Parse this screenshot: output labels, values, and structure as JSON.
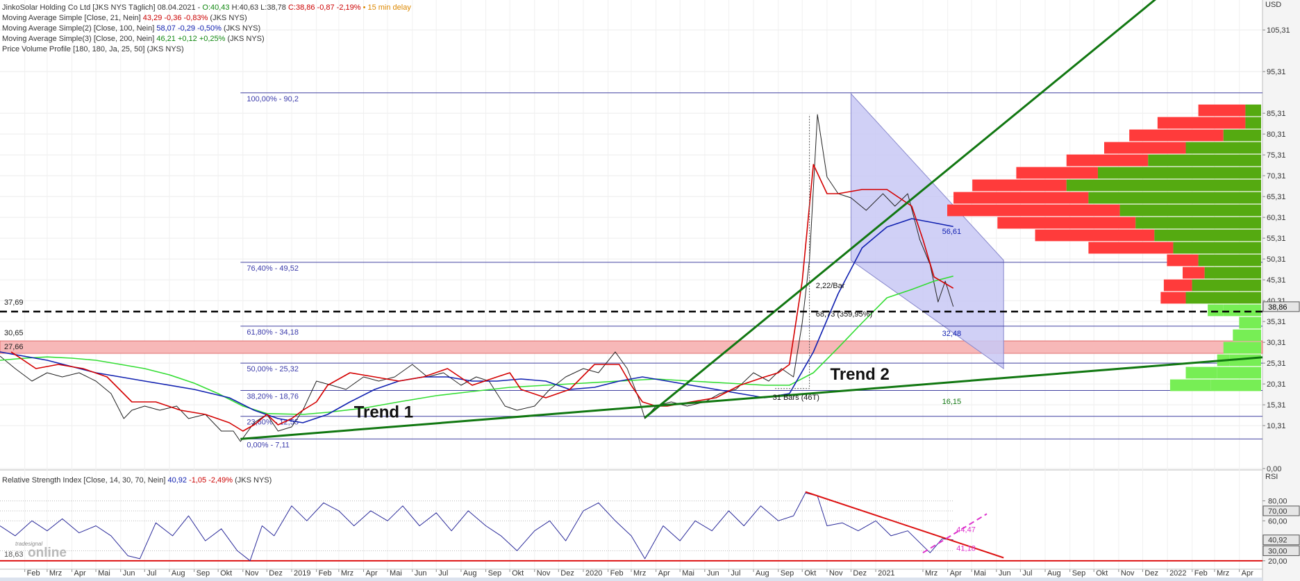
{
  "header": {
    "instrument": "JinkoSolar Holding Co Ltd [JKS NYS Täglich] 08.04.2021 - ",
    "ohlc_open": "O:40,43",
    "ohlc_hl": " H:40,63 L:38,78",
    "ohlc_close": " C:38,86 -0,87 -2,19%",
    "delay": " • 15 min delay",
    "indicators": [
      {
        "label": "Moving Average Simple [Close, 21, Nein] ",
        "value": "43,29 -0,36 -0,83%",
        "suffix": " (JKS NYS)"
      },
      {
        "label": "Moving Average Simple(2) [Close, 100, Nein] ",
        "value": "58,07 -0,29 -0,50%",
        "suffix": " (JKS NYS)"
      },
      {
        "label": "Moving Average Simple(3) [Close, 200, Nein] ",
        "value": "46,21 +0,12 +0,25%",
        "suffix": " (JKS NYS)"
      },
      {
        "label": "Price Volume Profile [180, 180, Ja, 25, 50] (JKS NYS)",
        "value": "",
        "suffix": ""
      }
    ]
  },
  "colors": {
    "ma21": "#d40000",
    "ma100": "#1020b0",
    "ma200": "#33dd33",
    "trend": "#117711",
    "fib": "#4040a0",
    "rsi": "#2a2a9a",
    "rsi_trend": "#dd1111",
    "rsi_pink": "#dd33cc",
    "support_band": "#f7b8b8",
    "channel": "#c8c8f4",
    "vp_red": "#ff3b3b",
    "vp_green": "#55aa11",
    "vp_lightgreen": "#77ee55"
  },
  "chart_data": [
    {
      "type": "line",
      "title": "JinkoSolar Holding Co Ltd [JKS NYS Täglich]",
      "y_axis_unit": "USD",
      "ylim": [
        0,
        110
      ],
      "y_ticks": [
        "105,31",
        "95,31",
        "85,31",
        "80,31",
        "75,31",
        "70,31",
        "65,31",
        "60,31",
        "55,31",
        "50,31",
        "45,31",
        "40,31",
        "35,31",
        "30,31",
        "25,31",
        "20,31",
        "15,31",
        "10,31",
        "0,00"
      ],
      "x_ticks": [
        "Feb",
        "Mrz",
        "Apr",
        "Mai",
        "Jun",
        "Jul",
        "Aug",
        "Sep",
        "Okt",
        "Nov",
        "Dez",
        "2019",
        "Feb",
        "Mrz",
        "Apr",
        "Mai",
        "Jun",
        "Jul",
        "Aug",
        "Sep",
        "Okt",
        "Nov",
        "Dez",
        "2020",
        "Feb",
        "Mrz",
        "Apr",
        "Mai",
        "Jun",
        "Jul",
        "Aug",
        "Sep",
        "Okt",
        "Nov",
        "Dez",
        "2021",
        "Mrz",
        "Apr",
        "Mai",
        "Jun",
        "Jul",
        "Aug",
        "Sep",
        "Okt",
        "Nov",
        "Dez",
        "2022",
        "Feb",
        "Mrz",
        "Apr"
      ],
      "fibonacci": [
        {
          "label": "100,00% - 90,2",
          "value": 90.2
        },
        {
          "label": "76,40% - 49,52",
          "value": 49.52
        },
        {
          "label": "61,80% - 34,18",
          "value": 34.18
        },
        {
          "label": "50,00% - 25,32",
          "value": 25.32
        },
        {
          "label": "38,20% - 18,76",
          "value": 18.76
        },
        {
          "label": "23,60% - 12,55",
          "value": 12.55
        },
        {
          "label": "0,00% - 7,11",
          "value": 7.11
        }
      ],
      "horizontal_levels": [
        {
          "label": "37,69",
          "value": 37.69,
          "style": "dashed"
        },
        {
          "label": "30,65",
          "value": 30.65
        },
        {
          "label": "27,66",
          "value": 27.66
        }
      ],
      "last_price": "38,86",
      "annotations": [
        {
          "text": "Trend 1",
          "kind": "trendline"
        },
        {
          "text": "Trend 2",
          "kind": "trendline"
        },
        {
          "text": "56,61",
          "kind": "channel-top"
        },
        {
          "text": "32,48",
          "kind": "channel-bottom"
        },
        {
          "text": "16,15",
          "kind": "trend-value"
        },
        {
          "text": "2,22/Bar",
          "kind": "measure"
        },
        {
          "text": "68,73 (359,95%)",
          "kind": "measure"
        },
        {
          "text": "31 Bars (46T)",
          "kind": "measure"
        }
      ],
      "series": [
        {
          "name": "Moving Average Simple [Close, 21, Nein]",
          "key": "ma21",
          "x": [
            "2018-01-15",
            "2018-02-15",
            "2018-03-15",
            "2018-04-15",
            "2018-05-15",
            "2018-06-15",
            "2018-07-15",
            "2018-08-15",
            "2018-09-15",
            "2018-10-15",
            "2018-11-01",
            "2018-11-15",
            "2018-12-01",
            "2018-12-15",
            "2019-01-01",
            "2019-01-15",
            "2019-02-01",
            "2019-02-15",
            "2019-03-15",
            "2019-04-15",
            "2019-05-15",
            "2019-06-15",
            "2019-07-15",
            "2019-08-15",
            "2019-09-15",
            "2019-10-01",
            "2019-10-15",
            "2019-11-15",
            "2019-12-15",
            "2020-01-15",
            "2020-02-15",
            "2020-03-01",
            "2020-03-15",
            "2020-04-01",
            "2020-04-15",
            "2020-05-15",
            "2020-06-15",
            "2020-07-15",
            "2020-08-15",
            "2020-09-01",
            "2020-09-15",
            "2020-10-01",
            "2020-10-15",
            "2020-11-01",
            "2020-11-15",
            "2020-12-15",
            "2021-01-15",
            "2021-02-15",
            "2021-03-01",
            "2021-03-15",
            "2021-04-08"
          ],
          "y": [
            28,
            24,
            25,
            24,
            22,
            16,
            16,
            14,
            13,
            11,
            9,
            10.5,
            13,
            10.5,
            12,
            14,
            16,
            20,
            23,
            22,
            21,
            22,
            24,
            20,
            22,
            23,
            19,
            17,
            19,
            25,
            25,
            20,
            16,
            15,
            15,
            16,
            17,
            20,
            22,
            23,
            25,
            45,
            73,
            66,
            66,
            67,
            67,
            63,
            55,
            46,
            43.3
          ]
        },
        {
          "name": "Moving Average Simple(2) [Close, 100, Nein]",
          "key": "ma100",
          "x": [
            "2018-01-01",
            "2018-03-01",
            "2018-05-01",
            "2018-07-01",
            "2018-09-01",
            "2018-10-15",
            "2018-11-15",
            "2018-12-15",
            "2019-01-15",
            "2019-02-15",
            "2019-03-15",
            "2019-04-15",
            "2019-05-15",
            "2019-06-15",
            "2019-07-15",
            "2019-08-15",
            "2019-09-15",
            "2019-10-15",
            "2019-11-15",
            "2019-12-15",
            "2020-01-15",
            "2020-02-15",
            "2020-03-15",
            "2020-04-15",
            "2020-05-15",
            "2020-06-15",
            "2020-07-15",
            "2020-08-15",
            "2020-09-15",
            "2020-10-15",
            "2020-11-15",
            "2020-12-15",
            "2021-01-15",
            "2021-02-15",
            "2021-03-15",
            "2021-04-08"
          ],
          "y": [
            28,
            26,
            23,
            21,
            19,
            17,
            14,
            12,
            11,
            13,
            16,
            19,
            21,
            22,
            22,
            21,
            21,
            21.5,
            21,
            19,
            19.5,
            21,
            22,
            21,
            20,
            19,
            18,
            17,
            18,
            28,
            42,
            53,
            58,
            60,
            59,
            58.1
          ]
        },
        {
          "name": "Moving Average Simple(3) [Close, 200, Nein]",
          "key": "ma200",
          "x": [
            "2018-01-01",
            "2018-02-01",
            "2018-03-01",
            "2018-04-01",
            "2018-05-01",
            "2018-06-01",
            "2018-07-01",
            "2018-08-01",
            "2018-09-01",
            "2018-10-01",
            "2018-11-01",
            "2018-12-01",
            "2019-01-15",
            "2019-02-15",
            "2019-04-01",
            "2019-05-15",
            "2019-07-01",
            "2019-08-15",
            "2019-10-01",
            "2019-11-15",
            "2020-01-01",
            "2020-02-15",
            "2020-04-01",
            "2020-05-15",
            "2020-07-01",
            "2020-08-15",
            "2020-09-15",
            "2020-10-15",
            "2020-11-15",
            "2020-12-15",
            "2021-01-15",
            "2021-02-15",
            "2021-03-15",
            "2021-04-08"
          ],
          "y": [
            26,
            26.5,
            26.8,
            26.5,
            26,
            25,
            24,
            22.5,
            20.5,
            18,
            15,
            13.2,
            13,
            13.5,
            14.5,
            16,
            17.5,
            18.5,
            19.5,
            20,
            20.5,
            21,
            21.5,
            21,
            20.5,
            20,
            20,
            23,
            29,
            35,
            41,
            43,
            45,
            46.2
          ]
        },
        {
          "name": "Kurs (Close)",
          "key": "price",
          "x": [
            "2018-01-01",
            "2018-01-20",
            "2018-02-10",
            "2018-03-01",
            "2018-03-20",
            "2018-04-10",
            "2018-05-01",
            "2018-05-20",
            "2018-06-05",
            "2018-06-15",
            "2018-07-01",
            "2018-07-20",
            "2018-08-10",
            "2018-08-25",
            "2018-09-15",
            "2018-10-05",
            "2018-10-20",
            "2018-10-29",
            "2018-11-15",
            "2018-12-01",
            "2018-12-15",
            "2019-01-01",
            "2019-01-15",
            "2019-02-01",
            "2019-02-20",
            "2019-03-10",
            "2019-04-01",
            "2019-04-20",
            "2019-05-10",
            "2019-06-01",
            "2019-06-20",
            "2019-07-10",
            "2019-08-01",
            "2019-08-20",
            "2019-09-05",
            "2019-09-25",
            "2019-10-10",
            "2019-11-01",
            "2019-11-20",
            "2019-12-10",
            "2020-01-01",
            "2020-01-20",
            "2020-02-10",
            "2020-02-25",
            "2020-03-10",
            "2020-03-18",
            "2020-04-01",
            "2020-04-20",
            "2020-05-10",
            "2020-06-01",
            "2020-06-20",
            "2020-07-10",
            "2020-08-01",
            "2020-08-20",
            "2020-09-05",
            "2020-09-20",
            "2020-10-01",
            "2020-10-10",
            "2020-10-20",
            "2020-11-01",
            "2020-11-15",
            "2020-12-01",
            "2020-12-20",
            "2021-01-10",
            "2021-01-25",
            "2021-02-10",
            "2021-02-25",
            "2021-03-10",
            "2021-03-20",
            "2021-03-29",
            "2021-04-08"
          ],
          "y": [
            27,
            24,
            21,
            23,
            22,
            23,
            21,
            18,
            12,
            14,
            15,
            14,
            15,
            12,
            13,
            9,
            9,
            6.5,
            11,
            13,
            9,
            10,
            14,
            21,
            20,
            19,
            22,
            21,
            22,
            25,
            22,
            23,
            20,
            22,
            21,
            15,
            14,
            15,
            19,
            22,
            24,
            23,
            28,
            24,
            17,
            12,
            15,
            16,
            15,
            16,
            18,
            19,
            23,
            21,
            24,
            22,
            35,
            50,
            85,
            70,
            66,
            65,
            62,
            66,
            63,
            66,
            55,
            49,
            40,
            45,
            38.9
          ]
        }
      ]
    },
    {
      "type": "line",
      "title": "Relative Strength Index [Close, 14, 30, 70, Nein]",
      "y_axis_unit": "RSI",
      "ylim": [
        15,
        95
      ],
      "y_ticks": [
        "80,00",
        "70,00",
        "60,00",
        "40,92",
        "30,00",
        "20,00"
      ],
      "current": "40,92",
      "change": "-1,05 -2,49%",
      "suffix": "(JKS NYS)",
      "annotations": [
        {
          "text": "44,47",
          "kind": "rsi-level"
        },
        {
          "text": "41,18",
          "kind": "rsi-level"
        },
        {
          "text": "18,63",
          "kind": "rsi-level"
        }
      ],
      "series": [
        {
          "name": "Relative Strength Index",
          "key": "rsi",
          "x": [
            "2018-01-01",
            "2018-01-20",
            "2018-02-10",
            "2018-03-01",
            "2018-03-20",
            "2018-04-10",
            "2018-05-01",
            "2018-05-20",
            "2018-06-10",
            "2018-06-25",
            "2018-07-15",
            "2018-08-05",
            "2018-08-25",
            "2018-09-15",
            "2018-10-05",
            "2018-10-25",
            "2018-11-10",
            "2018-11-25",
            "2018-12-10",
            "2019-01-01",
            "2019-01-20",
            "2019-02-10",
            "2019-03-01",
            "2019-03-20",
            "2019-04-10",
            "2019-05-01",
            "2019-05-20",
            "2019-06-10",
            "2019-07-01",
            "2019-07-20",
            "2019-08-10",
            "2019-09-01",
            "2019-09-20",
            "2019-10-10",
            "2019-11-01",
            "2019-11-20",
            "2019-12-10",
            "2020-01-01",
            "2020-01-20",
            "2020-02-10",
            "2020-03-01",
            "2020-03-18",
            "2020-04-10",
            "2020-05-01",
            "2020-05-20",
            "2020-06-10",
            "2020-07-01",
            "2020-07-20",
            "2020-08-10",
            "2020-09-01",
            "2020-09-20",
            "2020-10-05",
            "2020-10-20",
            "2020-11-01",
            "2020-11-20",
            "2020-12-10",
            "2021-01-01",
            "2021-01-20",
            "2021-02-10",
            "2021-03-01",
            "2021-03-10",
            "2021-03-25",
            "2021-04-08"
          ],
          "y": [
            55,
            45,
            60,
            50,
            62,
            48,
            55,
            45,
            25,
            22,
            58,
            45,
            65,
            40,
            52,
            30,
            20,
            55,
            45,
            75,
            60,
            78,
            70,
            55,
            70,
            60,
            75,
            55,
            68,
            50,
            70,
            55,
            45,
            30,
            50,
            60,
            40,
            70,
            78,
            60,
            45,
            22,
            55,
            40,
            60,
            50,
            70,
            55,
            75,
            60,
            65,
            88,
            85,
            55,
            58,
            50,
            60,
            45,
            50,
            35,
            28,
            42,
            40.9
          ]
        }
      ]
    }
  ],
  "volume_profile": [
    {
      "price": 86,
      "w": 0.2,
      "split": 0.05
    },
    {
      "price": 83,
      "w": 0.33,
      "split": 0.05
    },
    {
      "price": 80,
      "w": 0.42,
      "split": 0.12
    },
    {
      "price": 77,
      "w": 0.5,
      "split": 0.24
    },
    {
      "price": 74,
      "w": 0.62,
      "split": 0.36
    },
    {
      "price": 71,
      "w": 0.78,
      "split": 0.52
    },
    {
      "price": 68,
      "w": 0.92,
      "split": 0.62
    },
    {
      "price": 65,
      "w": 0.98,
      "split": 0.55
    },
    {
      "price": 62,
      "w": 1.0,
      "split": 0.45
    },
    {
      "price": 59,
      "w": 0.84,
      "split": 0.4
    },
    {
      "price": 56,
      "w": 0.72,
      "split": 0.34
    },
    {
      "price": 53,
      "w": 0.55,
      "split": 0.28
    },
    {
      "price": 50,
      "w": 0.3,
      "split": 0.2
    },
    {
      "price": 47,
      "w": 0.25,
      "split": 0.18
    },
    {
      "price": 44,
      "w": 0.31,
      "split": 0.22
    },
    {
      "price": 41,
      "w": 0.32,
      "split": 0.24
    },
    {
      "price": 38,
      "w": 0.17,
      "split": 0.12
    },
    {
      "price": 35,
      "w": 0.07,
      "split": 0.07
    },
    {
      "price": 32,
      "w": 0.09,
      "split": 0.09
    },
    {
      "price": 29,
      "w": 0.12,
      "split": 0.12
    },
    {
      "price": 26,
      "w": 0.14,
      "split": 0.1
    },
    {
      "price": 23,
      "w": 0.24,
      "split": 0.14
    },
    {
      "price": 20,
      "w": 0.29,
      "split": 0.16
    }
  ],
  "footer": {
    "watermark": "online",
    "watermark_small": "tradesignal"
  }
}
